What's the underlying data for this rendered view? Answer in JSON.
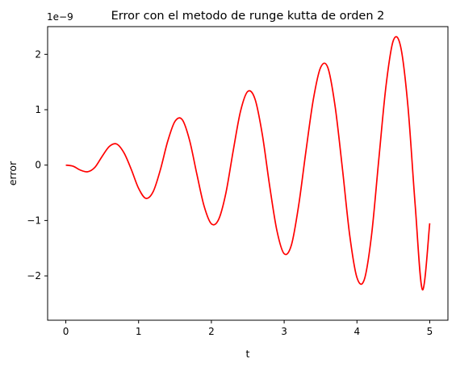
{
  "chart_data": {
    "type": "line",
    "title": "Error con el metodo de runge kutta de orden 2",
    "xlabel": "t",
    "ylabel": "error",
    "y_scale_label": "1e−9",
    "xlim": [
      -0.25,
      5.25
    ],
    "ylim": [
      -2.8e-09,
      2.5e-09
    ],
    "xticks": [
      0,
      1,
      2,
      3,
      4,
      5
    ],
    "xtick_labels": [
      "0",
      "1",
      "2",
      "3",
      "4",
      "5"
    ],
    "yticks": [
      -2e-09,
      -1e-09,
      0,
      1e-09,
      2e-09
    ],
    "ytick_labels": [
      "−2",
      "−1",
      "0",
      "1",
      "2"
    ],
    "grid": false,
    "series": [
      {
        "color": "#ff0000",
        "x": [
          0.0,
          0.1,
          0.2,
          0.3,
          0.4,
          0.5,
          0.6,
          0.7,
          0.8,
          0.9,
          1.0,
          1.1,
          1.2,
          1.3,
          1.4,
          1.5,
          1.6,
          1.7,
          1.8,
          1.9,
          2.0,
          2.1,
          2.2,
          2.3,
          2.4,
          2.5,
          2.6,
          2.7,
          2.8,
          2.9,
          3.0,
          3.1,
          3.2,
          3.3,
          3.4,
          3.5,
          3.6,
          3.7,
          3.8,
          3.9,
          4.0,
          4.1,
          4.2,
          4.3,
          4.4,
          4.5,
          4.6,
          4.7,
          4.8,
          4.9,
          5.0
        ],
        "y": [
          0.0,
          -2e-11,
          -9e-11,
          -1.2e-10,
          -4e-11,
          1.6e-10,
          3.4e-10,
          3.8e-10,
          2.2e-10,
          -8e-11,
          -4.2e-10,
          -6e-10,
          -4.8e-10,
          -8e-11,
          4.3e-10,
          7.9e-10,
          8.2e-10,
          4.5e-10,
          -1.6e-10,
          -7.4e-10,
          -1.06e-09,
          -9.8e-10,
          -5e-10,
          2.6e-10,
          9.7e-10,
          1.33e-09,
          1.19e-09,
          5.5e-10,
          -3.7e-10,
          -1.18e-09,
          -1.6e-09,
          -1.44e-09,
          -7.2e-10,
          2.6e-10,
          1.18e-09,
          1.76e-09,
          1.76e-09,
          1.06e-09,
          -6e-11,
          -1.26e-09,
          -2.03e-09,
          -2.07e-09,
          -1.27e-09,
          1e-10,
          1.44e-09,
          2.25e-09,
          2.14e-09,
          1.07e-09,
          -7.2e-10,
          -2.25e-09,
          -1.05e-09
        ]
      }
    ]
  }
}
